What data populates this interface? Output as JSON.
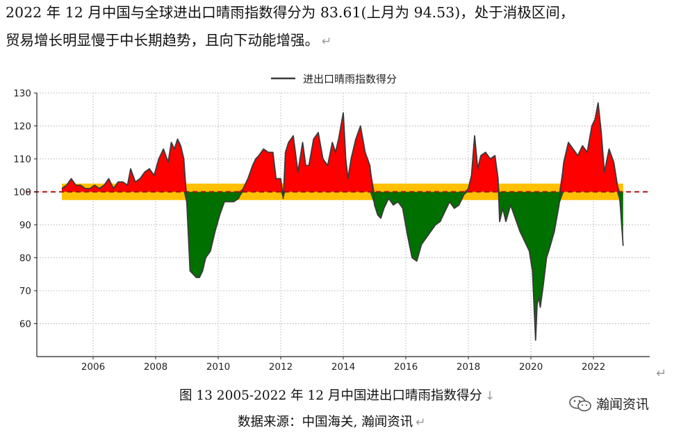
{
  "paragraph": {
    "line1": "2022 年 12 月中国与全球进出口晴雨指数得分为 83.61(上月为 94.53)，处于消极区间，",
    "line2": "贸易增长明显慢于中长期趋势，且向下动能增强。"
  },
  "caption": {
    "figure": "图 13 2005-2022 年 12 月中国进出口晴雨指数得分",
    "source": "数据来源：中国海关, 瀚闻资讯"
  },
  "watermark": {
    "text": "瀚闻资讯",
    "icon": "wechat-icon"
  },
  "chart_data": {
    "type": "area",
    "title": "",
    "xlabel": "",
    "ylabel": "",
    "legend": {
      "label": "进出口晴雨指数得分",
      "position": "top-center"
    },
    "xlim": [
      2004.2,
      2023.8
    ],
    "ylim": [
      50,
      130
    ],
    "xticks": [
      2006,
      2008,
      2010,
      2012,
      2014,
      2016,
      2018,
      2020,
      2022
    ],
    "yticks": [
      60,
      70,
      80,
      90,
      100,
      110,
      120,
      130
    ],
    "grid": true,
    "baseline": 100,
    "neutral_band": [
      97.5,
      102.5
    ],
    "neutral_band_range": [
      2005.0,
      2022.95
    ],
    "colors": {
      "line": "#3a3a3a",
      "above": "#ff0000",
      "below": "#007000",
      "band": "#ffc000",
      "baseline": "#a01010",
      "grid": "#b0b0b0"
    },
    "series": [
      {
        "x": [
          2005.0,
          2005.15,
          2005.3,
          2005.45,
          2005.6,
          2005.75,
          2005.9,
          2006.05,
          2006.2,
          2006.35,
          2006.5,
          2006.65,
          2006.8,
          2006.95,
          2007.1,
          2007.2,
          2007.35,
          2007.5,
          2007.65,
          2007.8,
          2007.95,
          2008.1,
          2008.25,
          2008.4,
          2008.5,
          2008.6,
          2008.7,
          2008.8,
          2008.9,
          2009.0,
          2009.1,
          2009.2,
          2009.3,
          2009.4,
          2009.5,
          2009.6,
          2009.75,
          2009.9,
          2010.05,
          2010.2,
          2010.35,
          2010.5,
          2010.65,
          2010.8,
          2010.95,
          2011.1,
          2011.2,
          2011.3,
          2011.45,
          2011.6,
          2011.75,
          2011.85,
          2012.0,
          2012.08,
          2012.15,
          2012.25,
          2012.4,
          2012.55,
          2012.7,
          2012.8,
          2012.9,
          2013.05,
          2013.2,
          2013.35,
          2013.5,
          2013.65,
          2013.75,
          2013.85,
          2014.0,
          2014.08,
          2014.15,
          2014.25,
          2014.4,
          2014.55,
          2014.7,
          2014.85,
          2015.0,
          2015.1,
          2015.2,
          2015.3,
          2015.45,
          2015.6,
          2015.75,
          2015.9,
          2016.05,
          2016.2,
          2016.35,
          2016.5,
          2016.65,
          2016.8,
          2016.95,
          2017.1,
          2017.25,
          2017.4,
          2017.55,
          2017.7,
          2017.85,
          2018.0,
          2018.1,
          2018.2,
          2018.3,
          2018.4,
          2018.55,
          2018.7,
          2018.85,
          2018.95,
          2019.0,
          2019.1,
          2019.2,
          2019.35,
          2019.5,
          2019.65,
          2019.8,
          2019.95,
          2020.05,
          2020.15,
          2020.2,
          2020.25,
          2020.3,
          2020.4,
          2020.5,
          2020.6,
          2020.75,
          2020.9,
          2021.05,
          2021.2,
          2021.35,
          2021.5,
          2021.65,
          2021.8,
          2021.95,
          2022.05,
          2022.15,
          2022.25,
          2022.35,
          2022.5,
          2022.65,
          2022.75,
          2022.85,
          2022.95
        ],
        "values": [
          101,
          102,
          104,
          102,
          102,
          101,
          101,
          102,
          101,
          102,
          104,
          101,
          103,
          103,
          102,
          107,
          103,
          104,
          106,
          107,
          105,
          110,
          113,
          109,
          115,
          113,
          116,
          114,
          110,
          96,
          76,
          75,
          74,
          74,
          76,
          80,
          82,
          88,
          93,
          97,
          97,
          97,
          98,
          101,
          104,
          108,
          110,
          111,
          113,
          112,
          112,
          104,
          104,
          98,
          112,
          115,
          117,
          106,
          115,
          108,
          108,
          116,
          118,
          110,
          108,
          115,
          112,
          116,
          124,
          110,
          104,
          110,
          116,
          120,
          112,
          108,
          96,
          93,
          92,
          95,
          98,
          96,
          97,
          95,
          87,
          80,
          79,
          84,
          86,
          88,
          90,
          91,
          94,
          97,
          95,
          96,
          99,
          101,
          105,
          117,
          107,
          111,
          112,
          110,
          111,
          104,
          91,
          95,
          91,
          96,
          92,
          88,
          85,
          82,
          76,
          55,
          66,
          68,
          65,
          72,
          80,
          83,
          88,
          96,
          109,
          115,
          113,
          111,
          114,
          112,
          120,
          122,
          127,
          118,
          106,
          113,
          109,
          103,
          97,
          83.61
        ]
      }
    ]
  }
}
